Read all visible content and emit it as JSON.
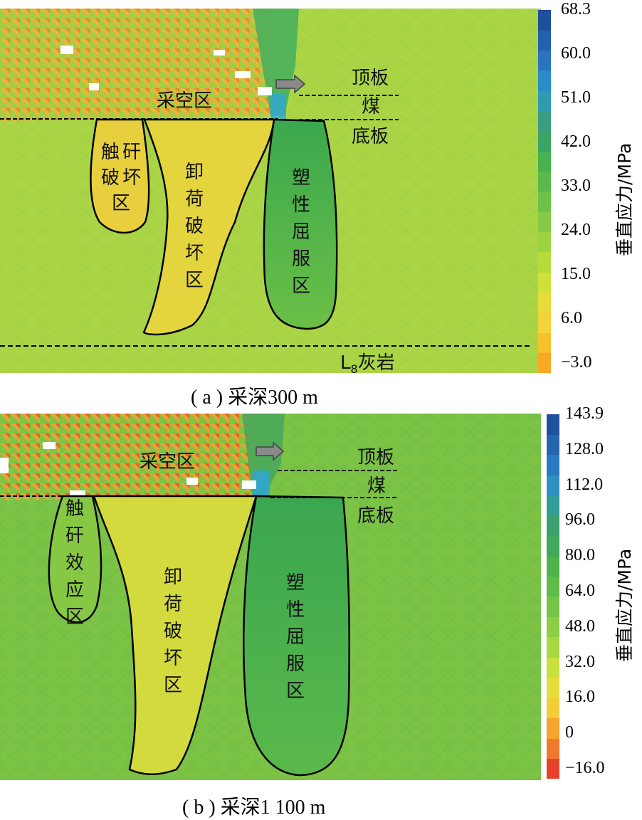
{
  "panel_a": {
    "zones": {
      "goaf": "采空区",
      "roof": "顶板",
      "coal": "煤",
      "floor": "底板",
      "touch": [
        "触",
        "矸",
        "破",
        "坏",
        "区"
      ],
      "unload": [
        "卸",
        "荷",
        "破",
        "坏",
        "区"
      ],
      "plastic": [
        "塑",
        "性",
        "屈",
        "服",
        "区"
      ],
      "limestone_main": "L",
      "limestone_sub": "8",
      "limestone_tail": "灰岩"
    },
    "colorbar": {
      "title": "垂直应力/MPa",
      "ticks": [
        "68.3",
        "60.0",
        "51.0",
        "42.0",
        "33.0",
        "24.0",
        "15.0",
        "6.0",
        "−3.0"
      ],
      "colors": [
        "#f7a825",
        "#f5c02c",
        "#f2d43a",
        "#e6dc3a",
        "#cfe03b",
        "#b5db3c",
        "#9cd341",
        "#84ca44",
        "#6fc147",
        "#5ab94a",
        "#47b04f",
        "#3aa566",
        "#3a9d7f",
        "#2f9bb2",
        "#2a8cc8",
        "#2a74bf",
        "#2460ac",
        "#1e4e9c"
      ]
    },
    "caption": "( a ) 采深300 m"
  },
  "panel_b": {
    "zones": {
      "goaf": "采空区",
      "roof": "顶板",
      "coal": "煤",
      "floor": "底板",
      "touch": [
        "触",
        "矸",
        "效",
        "应",
        "区"
      ],
      "unload": [
        "卸",
        "荷",
        "破",
        "坏",
        "区"
      ],
      "plastic": [
        "塑",
        "性",
        "屈",
        "服",
        "区"
      ]
    },
    "colorbar": {
      "title": "垂直应力/MPa",
      "ticks": [
        "143.9",
        "128.0",
        "112.0",
        "96.0",
        "80.0",
        "64.0",
        "48.0",
        "32.0",
        "16.0",
        "0",
        "−16.0"
      ],
      "colors": [
        "#e8412a",
        "#f07a2c",
        "#f5a52b",
        "#f2cd35",
        "#e3dd3b",
        "#c8df3c",
        "#a8d83f",
        "#8ccf43",
        "#74c546",
        "#5fbc49",
        "#4db34d",
        "#41a95b",
        "#3aa070",
        "#339c96",
        "#2c91c2",
        "#2a7ac3",
        "#2565b0",
        "#1f519e"
      ]
    },
    "caption": "( b ) 采深1 100 m"
  }
}
